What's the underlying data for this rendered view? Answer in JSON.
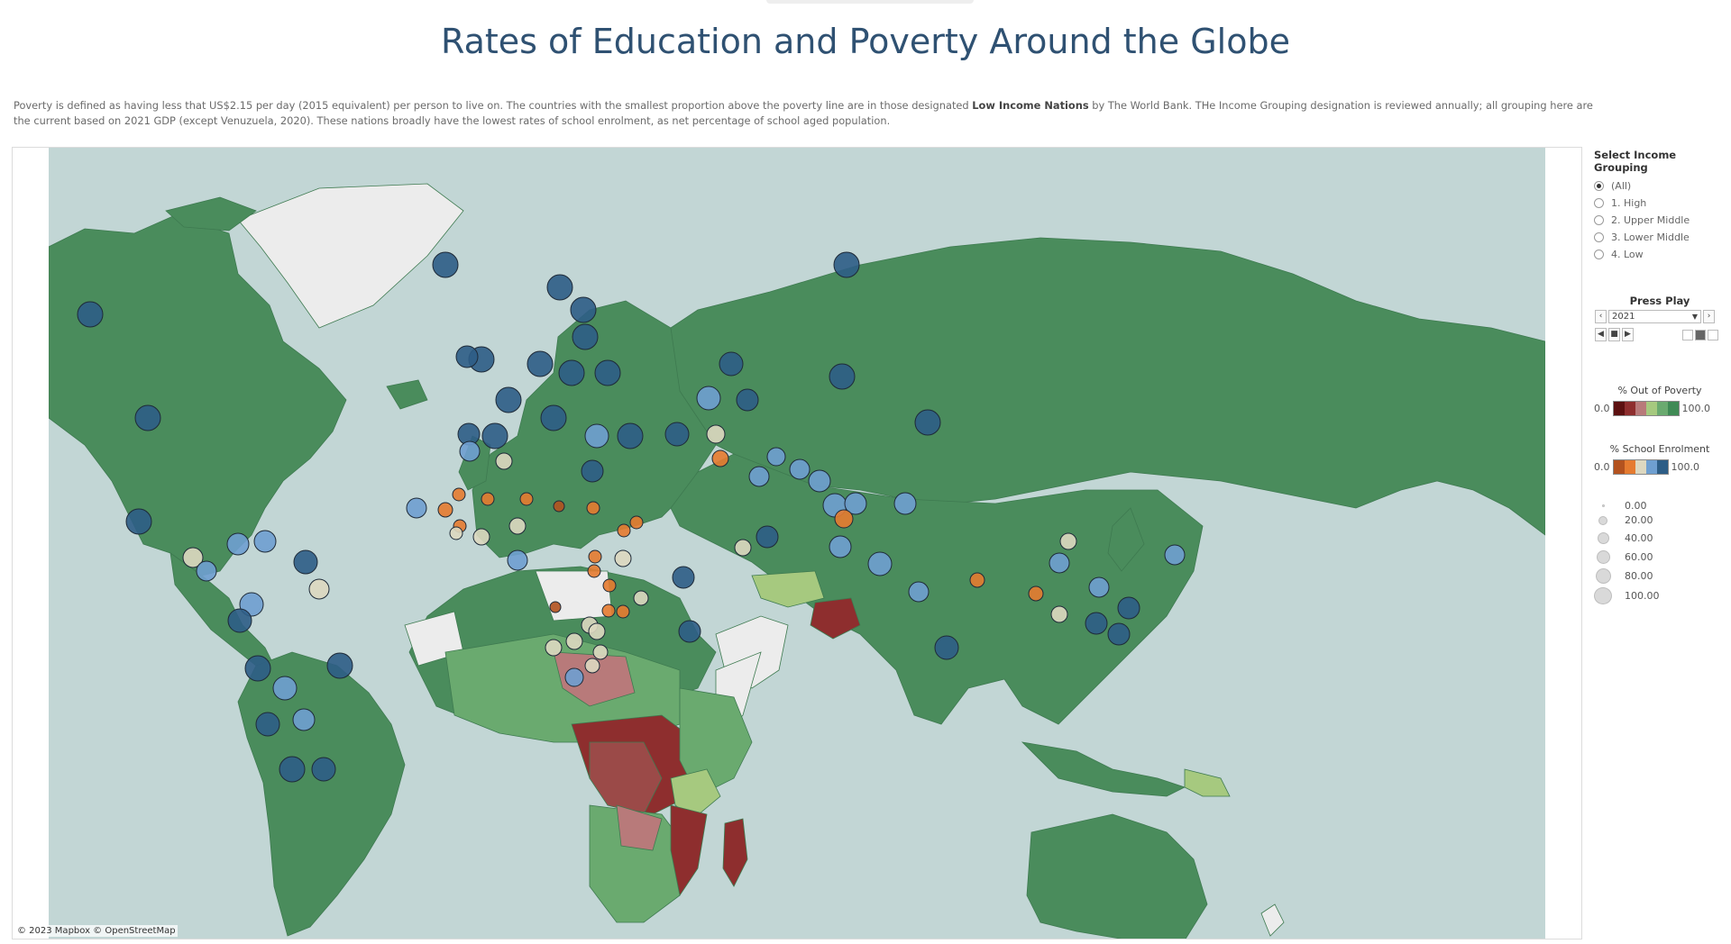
{
  "title": "Rates of Education and Poverty Around the Globe",
  "description": {
    "part1": "Poverty is defined as having less that US$2.15 per day (2015 equivalent) per person to live on. The countries with the smallest proportion above the poverty line are in those designated ",
    "bold": "Low Income Nations",
    "part2": " by The World Bank. THe Income Grouping designation is reviewed annually; all grouping here are the current based on 2021 GDP (except Venuzuela, 2020).  These nations broadly have the lowest rates of school enrolment, as net percentage of school aged population."
  },
  "map": {
    "attribution": "© 2023 Mapbox © OpenStreetMap",
    "colors": {
      "ocean": "#c2d6d5",
      "land_default": "#4a8c5c",
      "no_data": "#ececec",
      "border": "#3e7a50"
    }
  },
  "filter": {
    "title": "Select Income Grouping",
    "options": [
      "(All)",
      "1. High",
      "2. Upper Middle",
      "3. Lower Middle",
      "4. Low"
    ],
    "selected": "(All)"
  },
  "player": {
    "title": "Press Play",
    "year": "2021",
    "prev_icon": "chevron-left-icon",
    "next_icon": "chevron-right-icon",
    "back_icon": "step-back-icon",
    "stop_icon": "stop-icon",
    "forward_icon": "step-forward-icon"
  },
  "legend_poverty": {
    "title": "% Out of Poverty",
    "min": "0.0",
    "max": "100.0",
    "colors": [
      "#5c1010",
      "#8e2e2e",
      "#b87a7a",
      "#a6c97f",
      "#6aaa6f",
      "#3f8a55"
    ]
  },
  "legend_school": {
    "title": "% School Enrolment",
    "min": "0.0",
    "max": "100.0",
    "colors": [
      "#b3521f",
      "#e57b30",
      "#ddd8c0",
      "#6f9fd0",
      "#2d5d86"
    ]
  },
  "legend_size": {
    "values": [
      "0.00",
      "20.00",
      "40.00",
      "60.00",
      "80.00",
      "100.00"
    ]
  },
  "chart_data": {
    "type": "map",
    "encoding": {
      "fill": "% Out of Poverty",
      "circle_color": "% School Enrolment",
      "circle_size": "% School Enrolment"
    },
    "year": 2021,
    "filter": "(All)"
  }
}
